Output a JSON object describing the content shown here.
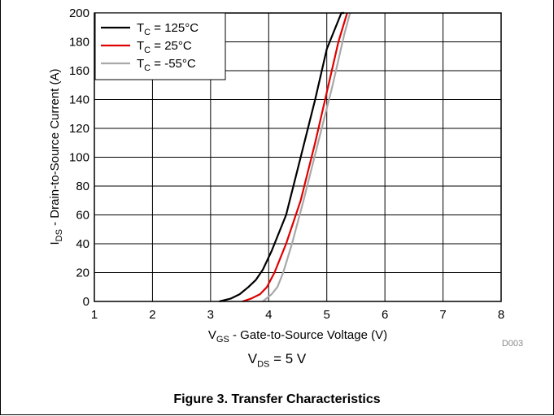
{
  "chart_data": {
    "type": "line",
    "title": "",
    "xlabel": {
      "main": "V",
      "sub": "GS",
      "rest": " - Gate-to-Source Voltage (V)"
    },
    "ylabel": {
      "main": "I",
      "sub": "DS",
      "rest": " - Drain-to-Source Current (A)"
    },
    "xlim": [
      1,
      8
    ],
    "ylim": [
      0,
      200
    ],
    "xticks": [
      1,
      2,
      3,
      4,
      5,
      6,
      7,
      8
    ],
    "yticks": [
      0,
      20,
      40,
      60,
      80,
      100,
      120,
      140,
      160,
      180,
      200
    ],
    "grid": true,
    "legend_position": "top-left",
    "series": [
      {
        "name": {
          "main": "T",
          "sub": "C",
          "rest": " = 125°C"
        },
        "color": "#000000",
        "x": [
          3.15,
          3.35,
          3.5,
          3.65,
          3.78,
          3.9,
          4.05,
          4.3,
          4.55,
          4.8,
          5.0,
          5.25,
          5.3
        ],
        "y": [
          0,
          2,
          5,
          10,
          15,
          22,
          35,
          60,
          100,
          140,
          175,
          200,
          200
        ]
      },
      {
        "name": {
          "main": "T",
          "sub": "C",
          "rest": " = 25°C"
        },
        "color": "#e00000",
        "x": [
          3.55,
          3.7,
          3.85,
          3.97,
          4.1,
          4.3,
          4.55,
          4.8,
          5.0,
          5.2,
          5.35
        ],
        "y": [
          0,
          2,
          5,
          10,
          20,
          40,
          70,
          110,
          145,
          180,
          200
        ]
      },
      {
        "name": {
          "main": "T",
          "sub": "C",
          "rest": " = -55°C"
        },
        "color": "#a8a8a8",
        "x": [
          3.9,
          4.05,
          4.15,
          4.25,
          4.4,
          4.6,
          4.85,
          5.1,
          5.3,
          5.4
        ],
        "y": [
          0,
          5,
          10,
          20,
          40,
          70,
          110,
          150,
          185,
          200
        ]
      }
    ]
  },
  "figure_code": "D003",
  "condition": {
    "main": "V",
    "sub": "DS",
    "rest": " = 5 V"
  },
  "caption": "Figure 3. Transfer Characteristics"
}
